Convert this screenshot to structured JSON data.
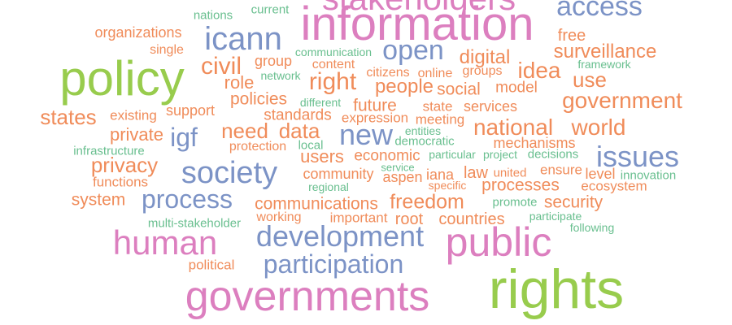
{
  "palette": {
    "orange": "#f08c5a",
    "green": "#69bf8f",
    "blue": "#7c93c6",
    "pink": "#dc7fbf",
    "lime": "#98cc4d"
  },
  "words": [
    {
      "text": "stakeholders",
      "color": "pink"
    },
    {
      "text": "current",
      "color": "green"
    },
    {
      "text": "access",
      "color": "blue"
    },
    {
      "text": "nations",
      "color": "green"
    },
    {
      "text": "information",
      "color": "pink"
    },
    {
      "text": "organizations",
      "color": "orange"
    },
    {
      "text": "icann",
      "color": "blue"
    },
    {
      "text": "free",
      "color": "orange"
    },
    {
      "text": "single",
      "color": "orange"
    },
    {
      "text": "communication",
      "color": "green"
    },
    {
      "text": "open",
      "color": "blue"
    },
    {
      "text": "surveillance",
      "color": "orange"
    },
    {
      "text": "policy",
      "color": "lime"
    },
    {
      "text": "group",
      "color": "orange"
    },
    {
      "text": "content",
      "color": "orange"
    },
    {
      "text": "digital",
      "color": "orange"
    },
    {
      "text": "framework",
      "color": "green"
    },
    {
      "text": "civil",
      "color": "orange"
    },
    {
      "text": "citizens",
      "color": "orange"
    },
    {
      "text": "online",
      "color": "orange"
    },
    {
      "text": "groups",
      "color": "orange"
    },
    {
      "text": "idea",
      "color": "orange"
    },
    {
      "text": "network",
      "color": "green"
    },
    {
      "text": "right",
      "color": "orange"
    },
    {
      "text": "people",
      "color": "orange"
    },
    {
      "text": "use",
      "color": "orange"
    },
    {
      "text": "role",
      "color": "orange"
    },
    {
      "text": "model",
      "color": "orange"
    },
    {
      "text": "social",
      "color": "orange"
    },
    {
      "text": "policies",
      "color": "orange"
    },
    {
      "text": "different",
      "color": "green"
    },
    {
      "text": "government",
      "color": "orange"
    },
    {
      "text": "support",
      "color": "orange"
    },
    {
      "text": "future",
      "color": "orange"
    },
    {
      "text": "state",
      "color": "orange"
    },
    {
      "text": "services",
      "color": "orange"
    },
    {
      "text": "states",
      "color": "orange"
    },
    {
      "text": "existing",
      "color": "orange"
    },
    {
      "text": "standards",
      "color": "orange"
    },
    {
      "text": "expression",
      "color": "orange"
    },
    {
      "text": "meeting",
      "color": "orange"
    },
    {
      "text": "national",
      "color": "orange"
    },
    {
      "text": "world",
      "color": "orange"
    },
    {
      "text": "private",
      "color": "orange"
    },
    {
      "text": "igf",
      "color": "blue"
    },
    {
      "text": "need",
      "color": "orange"
    },
    {
      "text": "data",
      "color": "orange"
    },
    {
      "text": "new",
      "color": "blue"
    },
    {
      "text": "entities",
      "color": "green"
    },
    {
      "text": "democratic",
      "color": "green"
    },
    {
      "text": "protection",
      "color": "orange"
    },
    {
      "text": "local",
      "color": "green"
    },
    {
      "text": "mechanisms",
      "color": "orange"
    },
    {
      "text": "infrastructure",
      "color": "green"
    },
    {
      "text": "users",
      "color": "orange"
    },
    {
      "text": "economic",
      "color": "orange"
    },
    {
      "text": "particular",
      "color": "green"
    },
    {
      "text": "project",
      "color": "green"
    },
    {
      "text": "decisions",
      "color": "green"
    },
    {
      "text": "issues",
      "color": "blue"
    },
    {
      "text": "privacy",
      "color": "orange"
    },
    {
      "text": "service",
      "color": "green"
    },
    {
      "text": "society",
      "color": "blue"
    },
    {
      "text": "community",
      "color": "orange"
    },
    {
      "text": "aspen",
      "color": "orange"
    },
    {
      "text": "iana",
      "color": "orange"
    },
    {
      "text": "law",
      "color": "orange"
    },
    {
      "text": "united",
      "color": "orange"
    },
    {
      "text": "ensure",
      "color": "orange"
    },
    {
      "text": "level",
      "color": "orange"
    },
    {
      "text": "innovation",
      "color": "green"
    },
    {
      "text": "functions",
      "color": "orange"
    },
    {
      "text": "regional",
      "color": "green"
    },
    {
      "text": "specific",
      "color": "orange"
    },
    {
      "text": "processes",
      "color": "orange"
    },
    {
      "text": "ecosystem",
      "color": "orange"
    },
    {
      "text": "system",
      "color": "orange"
    },
    {
      "text": "process",
      "color": "blue"
    },
    {
      "text": "communications",
      "color": "orange"
    },
    {
      "text": "freedom",
      "color": "orange"
    },
    {
      "text": "promote",
      "color": "green"
    },
    {
      "text": "security",
      "color": "orange"
    },
    {
      "text": "multi-stakeholder",
      "color": "green"
    },
    {
      "text": "working",
      "color": "orange"
    },
    {
      "text": "important",
      "color": "orange"
    },
    {
      "text": "root",
      "color": "orange"
    },
    {
      "text": "countries",
      "color": "orange"
    },
    {
      "text": "participate",
      "color": "green"
    },
    {
      "text": "following",
      "color": "green"
    },
    {
      "text": "human",
      "color": "pink"
    },
    {
      "text": "development",
      "color": "blue"
    },
    {
      "text": "public",
      "color": "pink"
    },
    {
      "text": "political",
      "color": "orange"
    },
    {
      "text": "participation",
      "color": "blue"
    },
    {
      "text": "governments",
      "color": "pink"
    },
    {
      "text": "rights",
      "color": "lime"
    }
  ]
}
